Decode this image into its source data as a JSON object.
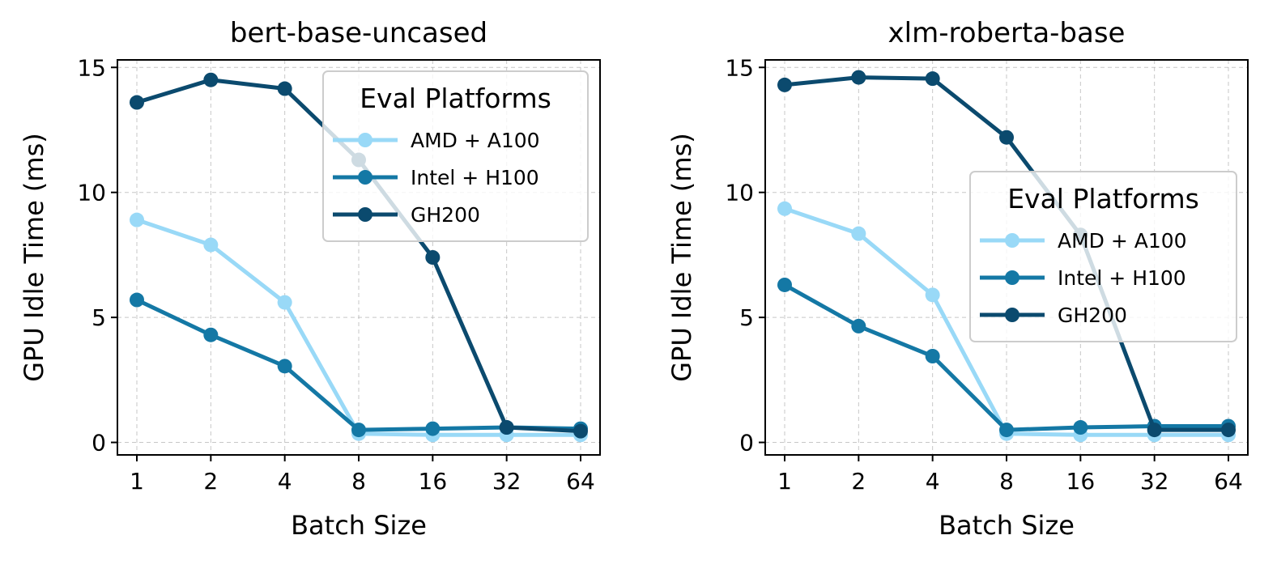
{
  "chart_data": [
    {
      "type": "line",
      "title": "bert-base-uncased",
      "xlabel": "Batch Size",
      "ylabel": "GPU Idle Time (ms)",
      "categories": [
        "1",
        "2",
        "4",
        "8",
        "16",
        "32",
        "64"
      ],
      "ylim": [
        -0.5,
        15.3
      ],
      "yticks": [
        0,
        5,
        10,
        15
      ],
      "grid": true,
      "legend": {
        "title": "Eval Platforms",
        "placement": "upper-right"
      },
      "series": [
        {
          "name": "AMD + A100",
          "color": "#99d9f7",
          "values": [
            8.9,
            7.9,
            5.6,
            0.35,
            0.3,
            0.3,
            0.3
          ]
        },
        {
          "name": "Intel + H100",
          "color": "#1478a5",
          "values": [
            5.7,
            4.3,
            3.05,
            0.5,
            0.55,
            0.6,
            0.55
          ]
        },
        {
          "name": "GH200",
          "color": "#0b4a6e",
          "values": [
            13.6,
            14.5,
            14.15,
            11.3,
            7.4,
            0.6,
            0.45
          ]
        }
      ]
    },
    {
      "type": "line",
      "title": "xlm-roberta-base",
      "xlabel": "Batch Size",
      "ylabel": "GPU Idle Time (ms)",
      "categories": [
        "1",
        "2",
        "4",
        "8",
        "16",
        "32",
        "64"
      ],
      "ylim": [
        -0.5,
        15.3
      ],
      "yticks": [
        0,
        5,
        10,
        15
      ],
      "grid": true,
      "legend": {
        "title": "Eval Platforms",
        "placement": "center-right"
      },
      "series": [
        {
          "name": "AMD + A100",
          "color": "#99d9f7",
          "values": [
            9.35,
            8.35,
            5.9,
            0.35,
            0.3,
            0.3,
            0.3
          ]
        },
        {
          "name": "Intel + H100",
          "color": "#1478a5",
          "values": [
            6.3,
            4.65,
            3.45,
            0.5,
            0.6,
            0.65,
            0.65
          ]
        },
        {
          "name": "GH200",
          "color": "#0b4a6e",
          "values": [
            14.3,
            14.6,
            14.55,
            12.2,
            8.3,
            0.5,
            0.5
          ]
        }
      ]
    }
  ]
}
